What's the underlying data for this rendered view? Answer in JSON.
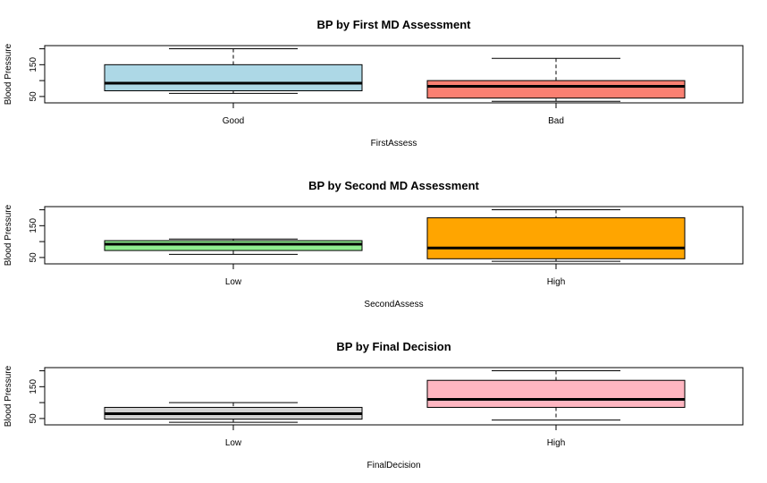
{
  "chart_data": [
    {
      "type": "boxplot",
      "title": "BP by First MD Assessment",
      "xlabel": "FirstAssess",
      "ylabel": "Blood Pressure",
      "ylim": [
        30,
        210
      ],
      "yticks": [
        50,
        150
      ],
      "categories": [
        "Good",
        "Bad"
      ],
      "boxes": [
        {
          "category": "Good",
          "color": "#add8e6",
          "min": 60,
          "q1": 68,
          "median": 92,
          "q3": 150,
          "max": 200
        },
        {
          "category": "Bad",
          "color": "#fa8072",
          "min": 35,
          "q1": 45,
          "median": 82,
          "q3": 100,
          "max": 170
        }
      ]
    },
    {
      "type": "boxplot",
      "title": "BP by Second MD Assessment",
      "xlabel": "SecondAssess",
      "ylabel": "Blood Pressure",
      "ylim": [
        30,
        210
      ],
      "yticks": [
        50,
        150
      ],
      "categories": [
        "Low",
        "High"
      ],
      "boxes": [
        {
          "category": "Low",
          "color": "#90ee90",
          "min": 60,
          "q1": 72,
          "median": 92,
          "q3": 103,
          "max": 108
        },
        {
          "category": "High",
          "color": "#ffa500",
          "min": 38,
          "q1": 46,
          "median": 80,
          "q3": 175,
          "max": 200
        }
      ]
    },
    {
      "type": "boxplot",
      "title": "BP by Final Decision",
      "xlabel": "FinalDecision",
      "ylabel": "Blood Pressure",
      "ylim": [
        30,
        210
      ],
      "yticks": [
        50,
        150
      ],
      "categories": [
        "Low",
        "High"
      ],
      "boxes": [
        {
          "category": "Low",
          "color": "#d3d3d3",
          "min": 38,
          "q1": 48,
          "median": 65,
          "q3": 85,
          "max": 100
        },
        {
          "category": "High",
          "color": "#ffb6c1",
          "min": 45,
          "q1": 85,
          "median": 110,
          "q3": 170,
          "max": 200
        }
      ]
    }
  ]
}
